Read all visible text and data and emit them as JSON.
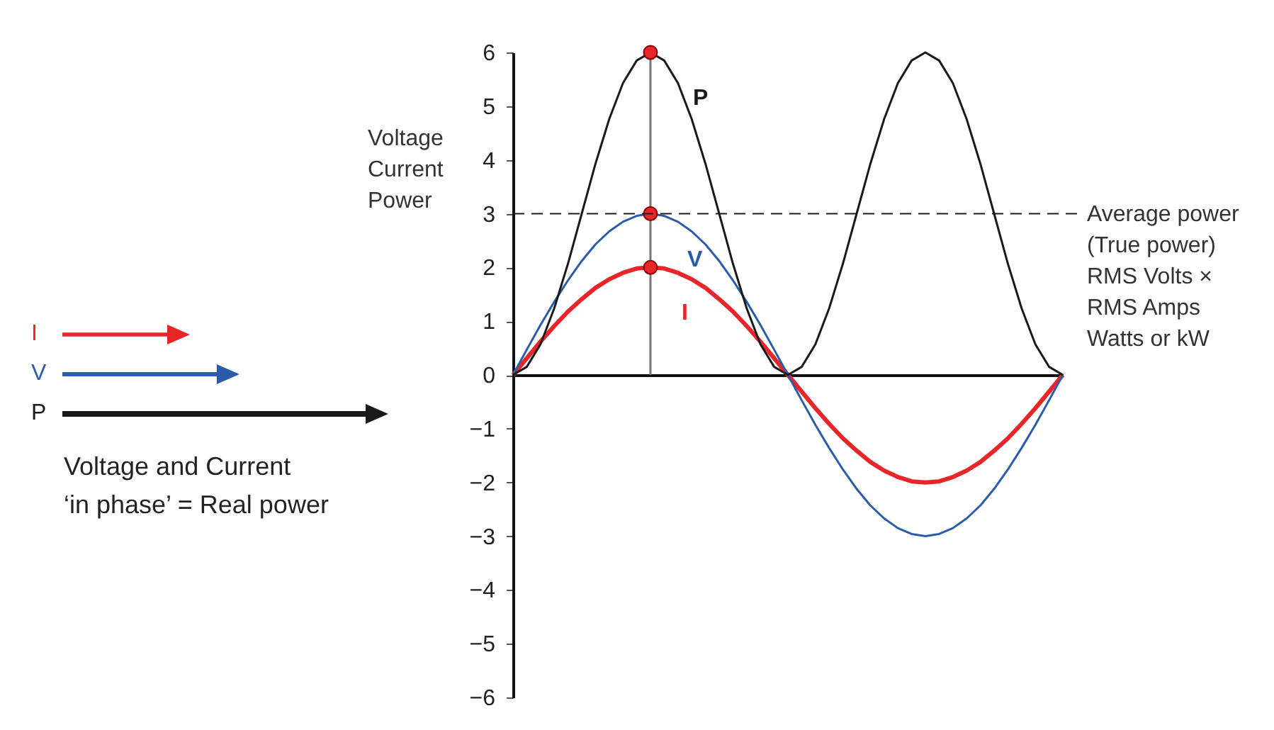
{
  "chart_data": {
    "type": "line",
    "ylabel": "Voltage\nCurrent\nPower",
    "categories": [
      null,
      null,
      null,
      null,
      null,
      null,
      null,
      null,
      null,
      null,
      null,
      null,
      null,
      null,
      null,
      null,
      null,
      null,
      null,
      null,
      null,
      null,
      null,
      null,
      null,
      null,
      null,
      null,
      null,
      null,
      null,
      null,
      null,
      null,
      null,
      null,
      null,
      null,
      null,
      null,
      null
    ],
    "series": [
      {
        "name": "I",
        "color": "#e8262a",
        "values": [
          0,
          0.31,
          0.62,
          0.91,
          1.18,
          1.41,
          1.62,
          1.78,
          1.9,
          1.98,
          2,
          1.98,
          1.9,
          1.78,
          1.62,
          1.41,
          1.18,
          0.91,
          0.62,
          0.31,
          0,
          -0.31,
          -0.62,
          -0.91,
          -1.18,
          -1.41,
          -1.62,
          -1.78,
          -1.9,
          -1.98,
          -2,
          -1.98,
          -1.9,
          -1.78,
          -1.62,
          -1.41,
          -1.18,
          -0.91,
          -0.62,
          -0.31,
          0
        ]
      },
      {
        "name": "V",
        "color": "#2a5caa",
        "values": [
          0,
          0.47,
          0.93,
          1.36,
          1.76,
          2.12,
          2.43,
          2.67,
          2.85,
          2.96,
          3,
          2.96,
          2.85,
          2.67,
          2.43,
          2.12,
          1.76,
          1.36,
          0.93,
          0.47,
          0,
          -0.47,
          -0.93,
          -1.36,
          -1.76,
          -2.12,
          -2.43,
          -2.67,
          -2.85,
          -2.96,
          -3,
          -2.96,
          -2.85,
          -2.67,
          -2.43,
          -2.12,
          -1.76,
          -1.36,
          -0.93,
          -0.47,
          0
        ]
      },
      {
        "name": "P",
        "color": "#1a1a1a",
        "values": [
          0,
          0.15,
          0.57,
          1.24,
          2.07,
          3,
          3.93,
          4.76,
          5.43,
          5.85,
          6,
          5.85,
          5.43,
          4.76,
          3.93,
          3,
          2.07,
          1.24,
          0.57,
          0.15,
          0,
          0.15,
          0.57,
          1.24,
          2.07,
          3,
          3.93,
          4.76,
          5.43,
          5.85,
          6,
          5.85,
          5.43,
          4.76,
          3.93,
          3,
          2.07,
          1.24,
          0.57,
          0.15,
          0
        ]
      },
      {
        "type": "lollipop",
        "color": "#e8262a",
        "values": [
          null,
          null,
          null,
          null,
          null,
          null,
          null,
          null,
          null,
          null,
          6,
          null,
          null,
          null,
          null,
          null,
          null,
          null,
          null,
          null,
          null,
          null,
          null,
          null,
          null,
          null,
          null,
          null,
          null,
          null,
          null,
          null,
          null,
          null,
          null,
          null,
          null,
          null,
          null,
          null,
          null
        ]
      },
      {
        "type": "scatter",
        "color": "#e8262a",
        "values": [
          null,
          null,
          null,
          null,
          null,
          null,
          null,
          null,
          null,
          null,
          3,
          null,
          null,
          null,
          null,
          null,
          null,
          null,
          null,
          null,
          null,
          null,
          null,
          null,
          null,
          null,
          null,
          null,
          null,
          null,
          null,
          null,
          null,
          null,
          null,
          null,
          null,
          null,
          null,
          null,
          null
        ]
      },
      {
        "type": "scatter",
        "color": "#e8262a",
        "values": [
          null,
          null,
          null,
          null,
          null,
          null,
          null,
          null,
          null,
          null,
          2,
          null,
          null,
          null,
          null,
          null,
          null,
          null,
          null,
          null,
          null,
          null,
          null,
          null,
          null,
          null,
          null,
          null,
          null,
          null,
          null,
          null,
          null,
          null,
          null,
          null,
          null,
          null,
          null,
          null,
          null
        ]
      }
    ],
    "ylim": [
      -6,
      6
    ],
    "yticks": [
      -6,
      -5,
      -4,
      -3,
      -2,
      -1,
      0,
      1,
      2,
      3,
      4,
      5,
      6
    ],
    "tick_labels": "y",
    "grid": false,
    "legend": "left",
    "ref_lines": [
      {
        "axis": "y",
        "value": 3,
        "label": "Average power\n(True power)\nRMS Volts ×\nRMS Amps\nWatts or kW",
        "line_style": "dashed",
        "color": "#1a1a1a"
      }
    ],
    "annotations": [
      "Voltage and Current\n‘in phase’ = Real power"
    ]
  }
}
